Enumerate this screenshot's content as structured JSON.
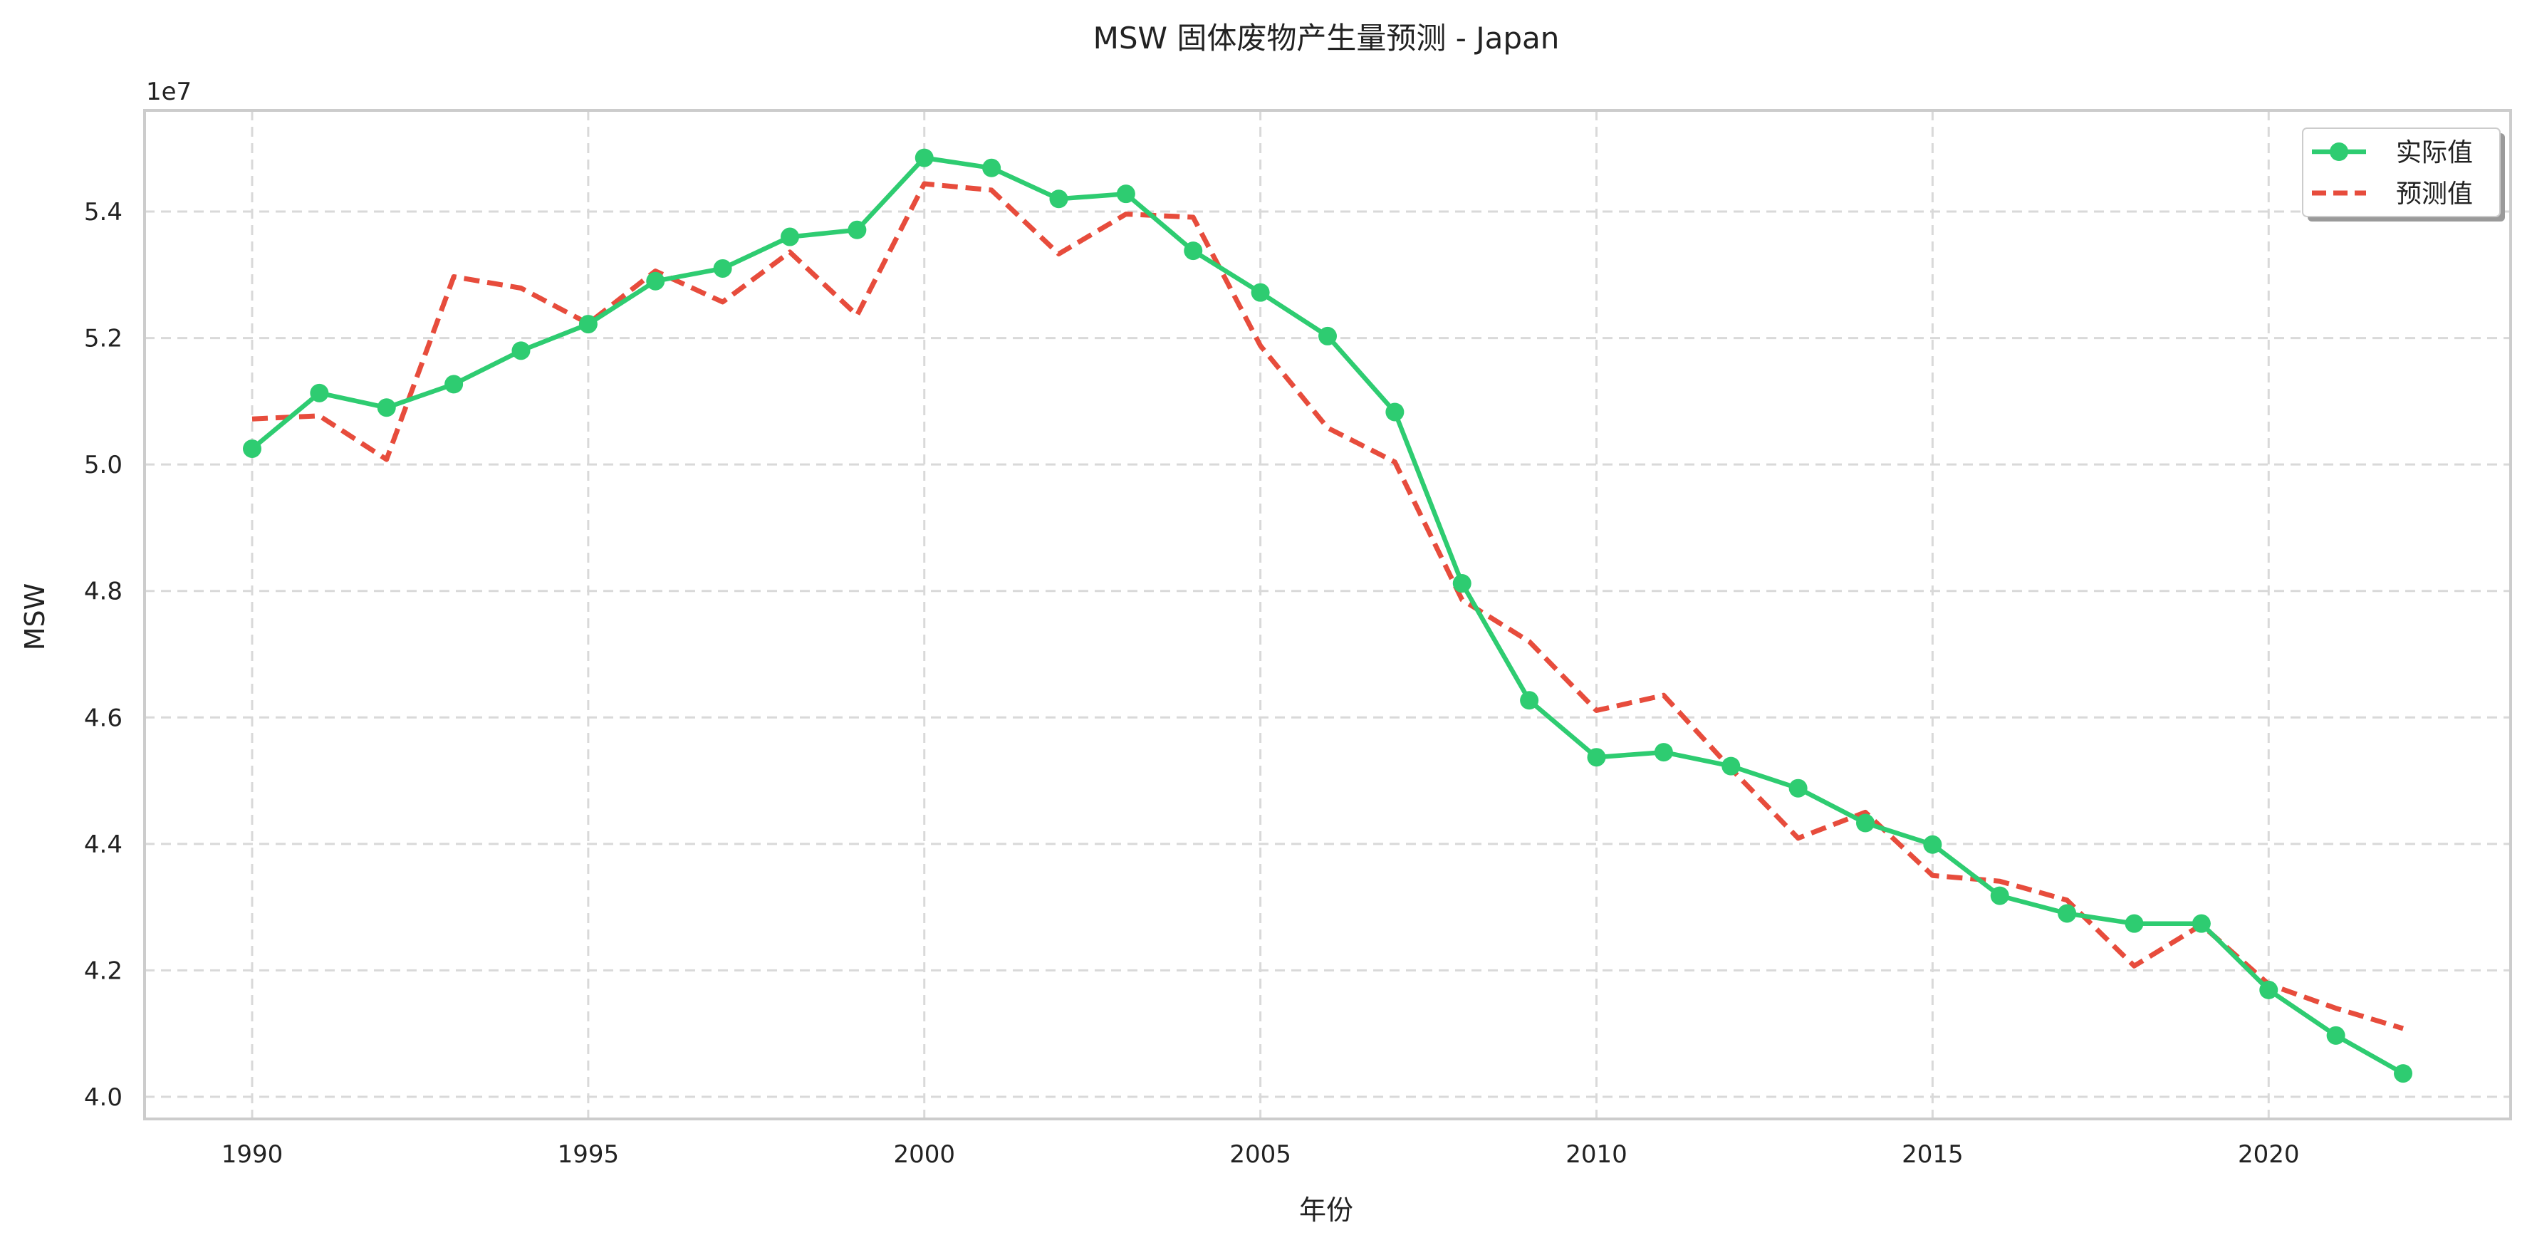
{
  "chart_data": {
    "type": "line",
    "title": "MSW 固体废物产生量预测 - Japan",
    "xlabel": "年份",
    "ylabel": "MSW",
    "y_offset_label": "1e7",
    "xlim": [
      1988.4,
      2023.6
    ],
    "ylim": [
      3.965,
      5.56
    ],
    "xticks": [
      1990,
      1995,
      2000,
      2005,
      2010,
      2015,
      2020
    ],
    "yticks": [
      4.0,
      4.2,
      4.4,
      4.6,
      4.8,
      5.0,
      5.2,
      5.4
    ],
    "ytick_labels": [
      "4.0",
      "4.2",
      "4.4",
      "4.6",
      "4.8",
      "5.0",
      "5.2",
      "5.4"
    ],
    "grid": true,
    "legend_position": "top-right",
    "x": [
      1990,
      1991,
      1992,
      1993,
      1994,
      1995,
      1996,
      1997,
      1998,
      1999,
      2000,
      2001,
      2002,
      2003,
      2004,
      2005,
      2006,
      2007,
      2008,
      2009,
      2010,
      2011,
      2012,
      2013,
      2014,
      2015,
      2016,
      2017,
      2018,
      2019,
      2020,
      2021,
      2022
    ],
    "series": [
      {
        "name": "实际值",
        "color": "#2ecc71",
        "style": "solid-markers",
        "values": [
          5.025,
          5.113,
          5.09,
          5.127,
          5.18,
          5.222,
          5.29,
          5.31,
          5.36,
          5.371,
          5.485,
          5.469,
          5.42,
          5.428,
          5.338,
          5.272,
          5.203,
          5.083,
          4.812,
          4.627,
          4.537,
          4.545,
          4.523,
          4.488,
          4.433,
          4.399,
          4.318,
          4.29,
          4.274,
          4.274,
          4.169,
          4.097,
          4.037
        ]
      },
      {
        "name": "预测值",
        "color": "#e74c3c",
        "style": "dashed",
        "values": [
          5.072,
          5.077,
          5.008,
          5.297,
          5.279,
          5.223,
          5.306,
          5.257,
          5.336,
          5.236,
          5.444,
          5.434,
          5.333,
          5.396,
          5.391,
          5.188,
          5.058,
          5.004,
          4.786,
          4.72,
          4.611,
          4.635,
          4.519,
          4.409,
          4.45,
          4.35,
          4.341,
          4.311,
          4.207,
          4.272,
          4.178,
          4.14,
          4.108
        ]
      }
    ]
  }
}
